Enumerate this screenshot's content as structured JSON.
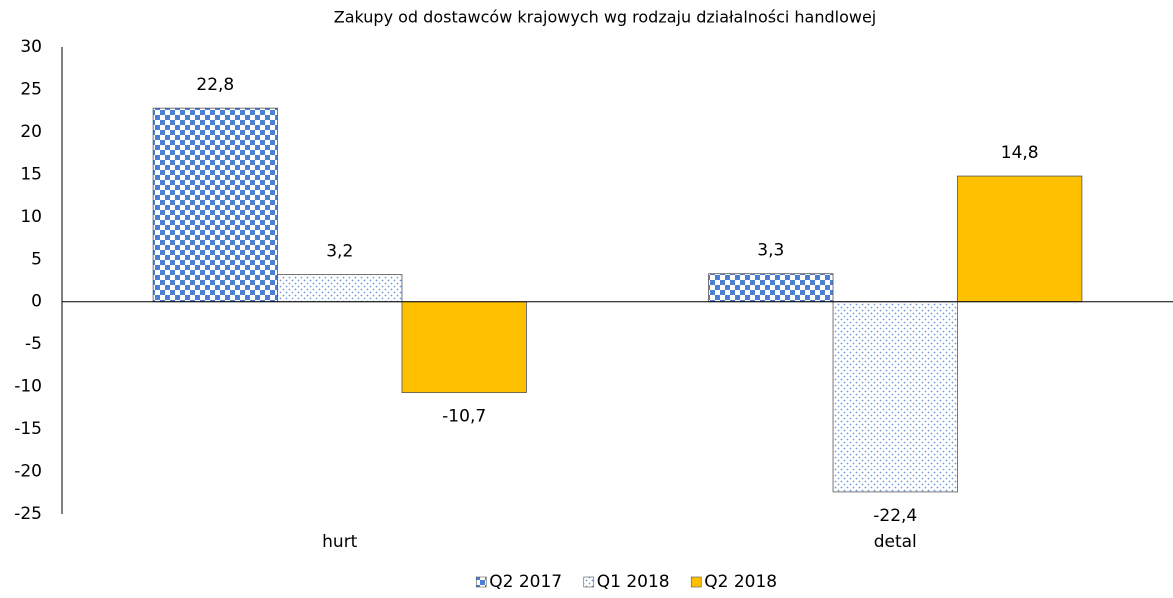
{
  "chart_data": {
    "type": "bar",
    "title": "Zakupy od dostawców krajowych wg rodzaju działalności handlowej",
    "categories": [
      "hurt",
      "detal"
    ],
    "series": [
      {
        "name": "Q2 2017",
        "color": "#4a7fd4",
        "pattern": "checker",
        "values": [
          22.8,
          3.3
        ],
        "value_labels": [
          "22,8",
          "3,3"
        ]
      },
      {
        "name": "Q1 2018",
        "color": "#6f9ad8",
        "pattern": "dots",
        "values": [
          3.2,
          -22.4
        ],
        "value_labels": [
          "3,2",
          "-22,4"
        ]
      },
      {
        "name": "Q2 2018",
        "color": "#ffc000",
        "pattern": "solid",
        "values": [
          -10.7,
          14.8
        ],
        "value_labels": [
          "-10,7",
          "14,8"
        ]
      }
    ],
    "ylim": [
      -25,
      30
    ],
    "yticks": [
      -25,
      -20,
      -15,
      -10,
      -5,
      0,
      5,
      10,
      15,
      20,
      25,
      30
    ],
    "grid": false,
    "legend": "bottom"
  }
}
